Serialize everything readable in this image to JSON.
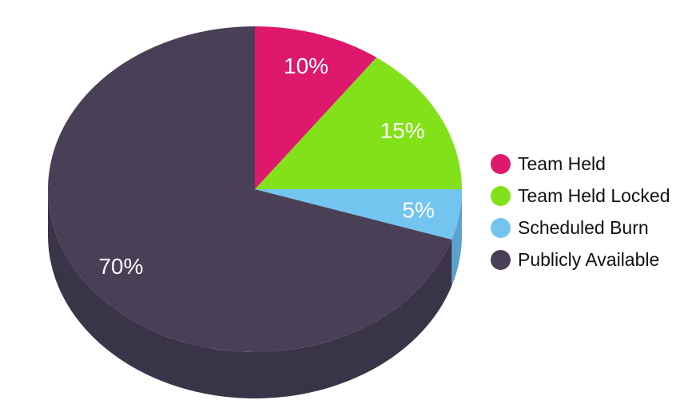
{
  "chart_data": {
    "type": "pie",
    "style": "3d",
    "direction": "clockwise",
    "start_angle_deg": 0,
    "legend_position": "right",
    "total": 100,
    "background_color": "#ffffff",
    "value_label_color": "#ffffff",
    "legend_text_color": "#111111",
    "slices": [
      {
        "label": "Team Held",
        "value": 10,
        "value_label": "10%",
        "color": "#de186c"
      },
      {
        "label": "Team Held Locked",
        "value": 15,
        "value_label": "15%",
        "color": "#83e119"
      },
      {
        "label": "Scheduled Burn",
        "value": 5,
        "value_label": "5%",
        "color": "#74c4f0",
        "side_color": "#5aa2d0"
      },
      {
        "label": "Publicly Available",
        "value": 70,
        "value_label": "70%",
        "color": "#494057",
        "side_color": "#3a3448"
      }
    ]
  }
}
